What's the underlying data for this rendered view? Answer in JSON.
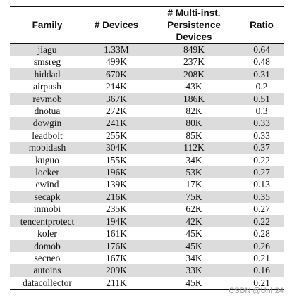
{
  "table": {
    "headers": {
      "family": "Family",
      "devices": "# Devices",
      "multi_line1": "# Multi-inst.",
      "multi_line2": "Persistence Devices",
      "ratio": "Ratio"
    },
    "rows": [
      {
        "family": "jiagu",
        "devices": "1.33M",
        "multi": "849K",
        "ratio": "0.64"
      },
      {
        "family": "smsreg",
        "devices": "499K",
        "multi": "237K",
        "ratio": "0.48"
      },
      {
        "family": "hiddad",
        "devices": "670K",
        "multi": "208K",
        "ratio": "0.31"
      },
      {
        "family": "airpush",
        "devices": "214K",
        "multi": "43K",
        "ratio": "0.2"
      },
      {
        "family": "revmob",
        "devices": "367K",
        "multi": "186K",
        "ratio": "0.51"
      },
      {
        "family": "dnotua",
        "devices": "272K",
        "multi": "82K",
        "ratio": "0.3"
      },
      {
        "family": "dowgin",
        "devices": "241K",
        "multi": "80K",
        "ratio": "0.33"
      },
      {
        "family": "leadbolt",
        "devices": "255K",
        "multi": "85K",
        "ratio": "0.33"
      },
      {
        "family": "mobidash",
        "devices": "304K",
        "multi": "112K",
        "ratio": "0.37"
      },
      {
        "family": "kuguo",
        "devices": "155K",
        "multi": "34K",
        "ratio": "0.22"
      },
      {
        "family": "locker",
        "devices": "196K",
        "multi": "53K",
        "ratio": "0.27"
      },
      {
        "family": "ewind",
        "devices": "139K",
        "multi": "17K",
        "ratio": "0.13"
      },
      {
        "family": "secapk",
        "devices": "216K",
        "multi": "75K",
        "ratio": "0.35"
      },
      {
        "family": "inmobi",
        "devices": "235K",
        "multi": "62K",
        "ratio": "0.27"
      },
      {
        "family": "tencentprotect",
        "devices": "194K",
        "multi": "42K",
        "ratio": "0.22"
      },
      {
        "family": "koler",
        "devices": "161K",
        "multi": "45K",
        "ratio": "0.28"
      },
      {
        "family": "domob",
        "devices": "176K",
        "multi": "45K",
        "ratio": "0.26"
      },
      {
        "family": "secneo",
        "devices": "167K",
        "multi": "34K",
        "ratio": "0.21"
      },
      {
        "family": "autoins",
        "devices": "209K",
        "multi": "33K",
        "ratio": "0.16"
      },
      {
        "family": "datacollector",
        "devices": "211K",
        "multi": "45K",
        "ratio": "0.21"
      }
    ]
  },
  "watermark": "CSDN @Unh24",
  "colors": {
    "stripe": "#dcdcdc",
    "rule": "#111111",
    "watermark": "#9a9a9a"
  }
}
